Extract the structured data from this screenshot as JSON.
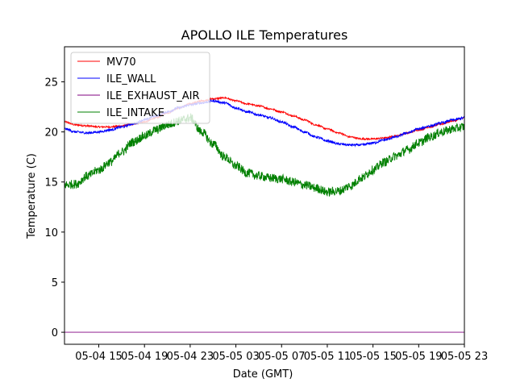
{
  "chart_data": {
    "type": "line",
    "title": "APOLLO ILE Temperatures",
    "xlabel": "Date (GMT)",
    "ylabel": "Temperature (C)",
    "xlim": [
      0,
      35
    ],
    "ylim": [
      -1.2,
      28.5
    ],
    "x_unit": "hours since 05-04 12:00 GMT",
    "x_ticks": [
      {
        "x": 3,
        "label": "05-04 15"
      },
      {
        "x": 7,
        "label": "05-04 19"
      },
      {
        "x": 11,
        "label": "05-04 23"
      },
      {
        "x": 15,
        "label": "05-05 03"
      },
      {
        "x": 19,
        "label": "05-05 07"
      },
      {
        "x": 23,
        "label": "05-05 11"
      },
      {
        "x": 27,
        "label": "05-05 15"
      },
      {
        "x": 31,
        "label": "05-05 19"
      },
      {
        "x": 35,
        "label": "05-05 23"
      }
    ],
    "y_ticks": [
      0,
      5,
      10,
      15,
      20,
      25
    ],
    "legend_position": "upper-left",
    "series": [
      {
        "name": "MV70",
        "color": "#ff0000",
        "noise": 0.08,
        "x": [
          0,
          1,
          2,
          3,
          4,
          5,
          6,
          7,
          8,
          9,
          10,
          11,
          12,
          13,
          14,
          15,
          16,
          17,
          18,
          19,
          20,
          21,
          22,
          23,
          24,
          25,
          26,
          27,
          28,
          29,
          30,
          31,
          32,
          33,
          34,
          35
        ],
        "values": [
          21.0,
          20.7,
          20.6,
          20.5,
          20.5,
          20.6,
          20.8,
          21.0,
          21.4,
          21.9,
          22.4,
          22.8,
          23.1,
          23.3,
          23.4,
          23.1,
          22.8,
          22.6,
          22.3,
          22.0,
          21.6,
          21.2,
          20.7,
          20.3,
          19.9,
          19.5,
          19.3,
          19.3,
          19.4,
          19.6,
          19.9,
          20.2,
          20.5,
          20.8,
          21.1,
          21.4
        ]
      },
      {
        "name": "ILE_WALL",
        "color": "#0000ff",
        "noise": 0.12,
        "x": [
          0,
          1,
          2,
          3,
          4,
          5,
          6,
          7,
          8,
          9,
          10,
          11,
          12,
          13,
          14,
          15,
          16,
          17,
          18,
          19,
          20,
          21,
          22,
          23,
          24,
          25,
          26,
          27,
          28,
          29,
          30,
          31,
          32,
          33,
          34,
          35
        ],
        "values": [
          20.3,
          20.0,
          19.9,
          20.0,
          20.2,
          20.5,
          20.8,
          21.2,
          21.6,
          22.0,
          22.4,
          22.7,
          22.9,
          23.1,
          22.9,
          22.4,
          22.0,
          21.7,
          21.4,
          21.0,
          20.5,
          20.0,
          19.5,
          19.1,
          18.8,
          18.7,
          18.7,
          18.9,
          19.2,
          19.5,
          19.9,
          20.3,
          20.6,
          20.9,
          21.2,
          21.4
        ]
      },
      {
        "name": "ILE_EXHAUST_AIR",
        "color": "#800080",
        "noise": 0,
        "x": [
          0,
          35
        ],
        "values": [
          0,
          0
        ]
      },
      {
        "name": "ILE_INTAKE",
        "color": "#008000",
        "noise": 0.45,
        "x": [
          0,
          1,
          2,
          3,
          4,
          5,
          6,
          7,
          8,
          9,
          10,
          11,
          12,
          13,
          14,
          15,
          16,
          17,
          18,
          19,
          20,
          21,
          22,
          23,
          24,
          25,
          26,
          27,
          28,
          29,
          30,
          31,
          32,
          33,
          34,
          35
        ],
        "values": [
          14.7,
          14.8,
          15.6,
          16.2,
          17.0,
          18.0,
          19.0,
          19.6,
          20.2,
          20.7,
          21.1,
          21.4,
          20.0,
          18.8,
          17.5,
          16.6,
          15.9,
          15.6,
          15.4,
          15.3,
          15.0,
          14.7,
          14.4,
          14.0,
          14.1,
          14.6,
          15.4,
          16.2,
          17.0,
          17.6,
          18.2,
          18.9,
          19.5,
          20.0,
          20.3,
          20.5
        ]
      }
    ]
  }
}
